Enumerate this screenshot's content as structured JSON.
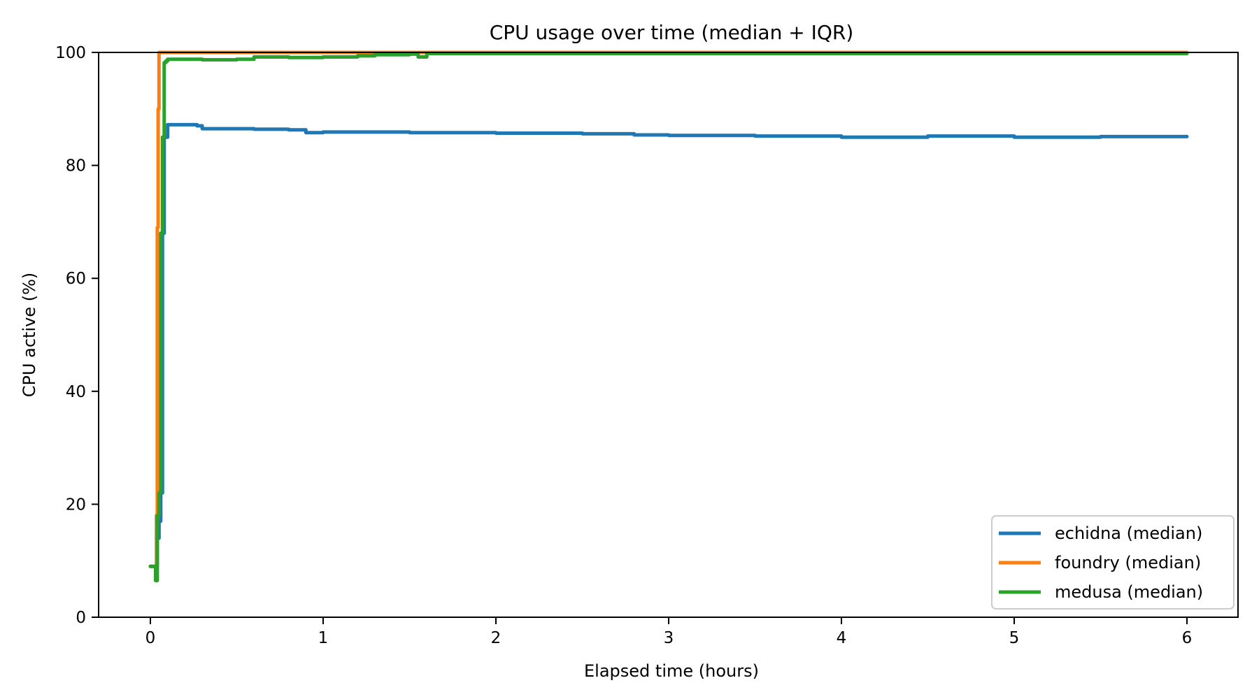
{
  "chart_data": {
    "type": "line",
    "title": "CPU usage over time (median + IQR)",
    "xlabel": "Elapsed time (hours)",
    "ylabel": "CPU active (%)",
    "xlim": [
      -0.33,
      6.3
    ],
    "ylim": [
      0,
      100
    ],
    "xticks": [
      "0",
      "1",
      "2",
      "3",
      "4",
      "5",
      "6"
    ],
    "yticks": [
      "0",
      "20",
      "40",
      "60",
      "80",
      "100"
    ],
    "grid": false,
    "legend_position": "lower right",
    "series": [
      {
        "name": "echidna (median)",
        "color": "#1f77b4",
        "x": [
          0.0,
          0.03,
          0.04,
          0.05,
          0.06,
          0.07,
          0.08,
          0.1,
          0.2,
          0.27,
          0.3,
          0.5,
          0.6,
          0.8,
          0.9,
          1.0,
          1.2,
          1.5,
          2.0,
          2.5,
          2.8,
          3.0,
          3.5,
          4.0,
          4.5,
          5.0,
          5.5,
          6.0
        ],
        "y": [
          9,
          9,
          14,
          17,
          22,
          68,
          85,
          87.2,
          87.2,
          87.0,
          86.5,
          86.5,
          86.4,
          86.3,
          85.8,
          85.9,
          85.9,
          85.8,
          85.7,
          85.6,
          85.4,
          85.3,
          85.2,
          85.0,
          85.2,
          85.0,
          85.1,
          85.1
        ]
      },
      {
        "name": "foundry (median)",
        "color": "#ff7f0e",
        "x": [
          0.0,
          0.03,
          0.035,
          0.04,
          0.045,
          0.05,
          6.0
        ],
        "y": [
          9,
          9,
          18,
          69,
          90,
          100,
          100
        ]
      },
      {
        "name": "medusa (median)",
        "color": "#2ca02c",
        "x": [
          0.0,
          0.02,
          0.03,
          0.04,
          0.05,
          0.06,
          0.07,
          0.08,
          0.09,
          0.1,
          0.3,
          0.5,
          0.6,
          0.8,
          1.0,
          1.2,
          1.3,
          1.5,
          1.55,
          1.6,
          2.0,
          3.0,
          4.0,
          5.0,
          6.0
        ],
        "y": [
          9,
          9,
          6.5,
          18,
          22,
          68,
          85,
          98.2,
          98.5,
          98.8,
          98.7,
          98.8,
          99.2,
          99.1,
          99.2,
          99.4,
          99.6,
          99.7,
          99.2,
          99.8,
          99.8,
          99.8,
          99.8,
          99.8,
          99.8
        ]
      }
    ]
  }
}
